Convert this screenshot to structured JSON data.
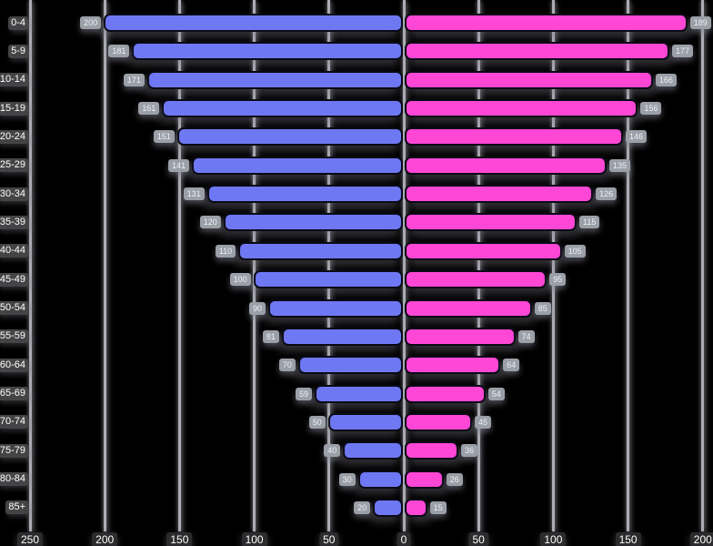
{
  "chart_data": {
    "type": "bar",
    "subtype": "population-pyramid",
    "title": "",
    "categories": [
      "0-4",
      "5-9",
      "10-14",
      "15-19",
      "20-24",
      "25-29",
      "30-34",
      "35-39",
      "40-44",
      "45-49",
      "50-54",
      "55-59",
      "60-64",
      "65-69",
      "70-74",
      "75-79",
      "80-84",
      "85+"
    ],
    "series": [
      {
        "name": "left",
        "side": "left",
        "color": "#6f78f3",
        "values": [
          200,
          181,
          171,
          161,
          151,
          141,
          131,
          120,
          110,
          100,
          90,
          81,
          70,
          59,
          50,
          40,
          30,
          20
        ]
      },
      {
        "name": "right",
        "side": "right",
        "color": "#ff47d5",
        "values": [
          189,
          177,
          166,
          156,
          146,
          135,
          126,
          115,
          105,
          95,
          85,
          74,
          64,
          54,
          45,
          36,
          26,
          15
        ]
      }
    ],
    "x_axis": {
      "tick_values": [
        -250,
        -200,
        -150,
        -100,
        -50,
        0,
        50,
        100,
        150,
        200
      ],
      "tick_labels": [
        "250",
        "200",
        "150",
        "100",
        "50",
        "0",
        "50",
        "100",
        "150",
        "200"
      ],
      "step": 50
    },
    "value_labels_visible": true,
    "grid": true,
    "legend_position": "none",
    "background_color": "#000000",
    "gridline_color": "#acacb4",
    "age_label_badge_color": "#48484a",
    "value_badge_color": "#9ba0a8",
    "tick_badge_color": "#2c2c2e",
    "text_color": "#ffffff"
  }
}
